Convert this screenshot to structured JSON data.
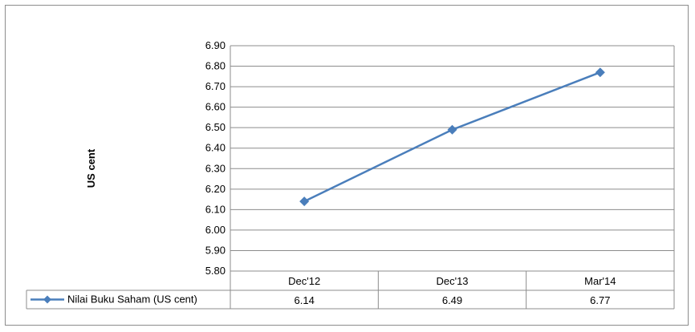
{
  "chart_data": {
    "type": "line",
    "title": "",
    "xlabel": "",
    "ylabel": "US cent",
    "categories": [
      "Dec'12",
      "Dec'13",
      "Mar'14"
    ],
    "series": [
      {
        "name": "Nilai Buku Saham (US cent)",
        "values": [
          6.14,
          6.49,
          6.77
        ],
        "color": "#4a7ebb"
      }
    ],
    "value_labels": [
      "6.14",
      "6.49",
      "6.77"
    ],
    "ylim": [
      5.8,
      6.9
    ],
    "yticks": [
      "5.80",
      "5.90",
      "6.00",
      "6.10",
      "6.20",
      "6.30",
      "6.40",
      "6.50",
      "6.60",
      "6.70",
      "6.80",
      "6.90"
    ],
    "grid": true,
    "legend": "data-table-left",
    "marker": "diamond"
  }
}
